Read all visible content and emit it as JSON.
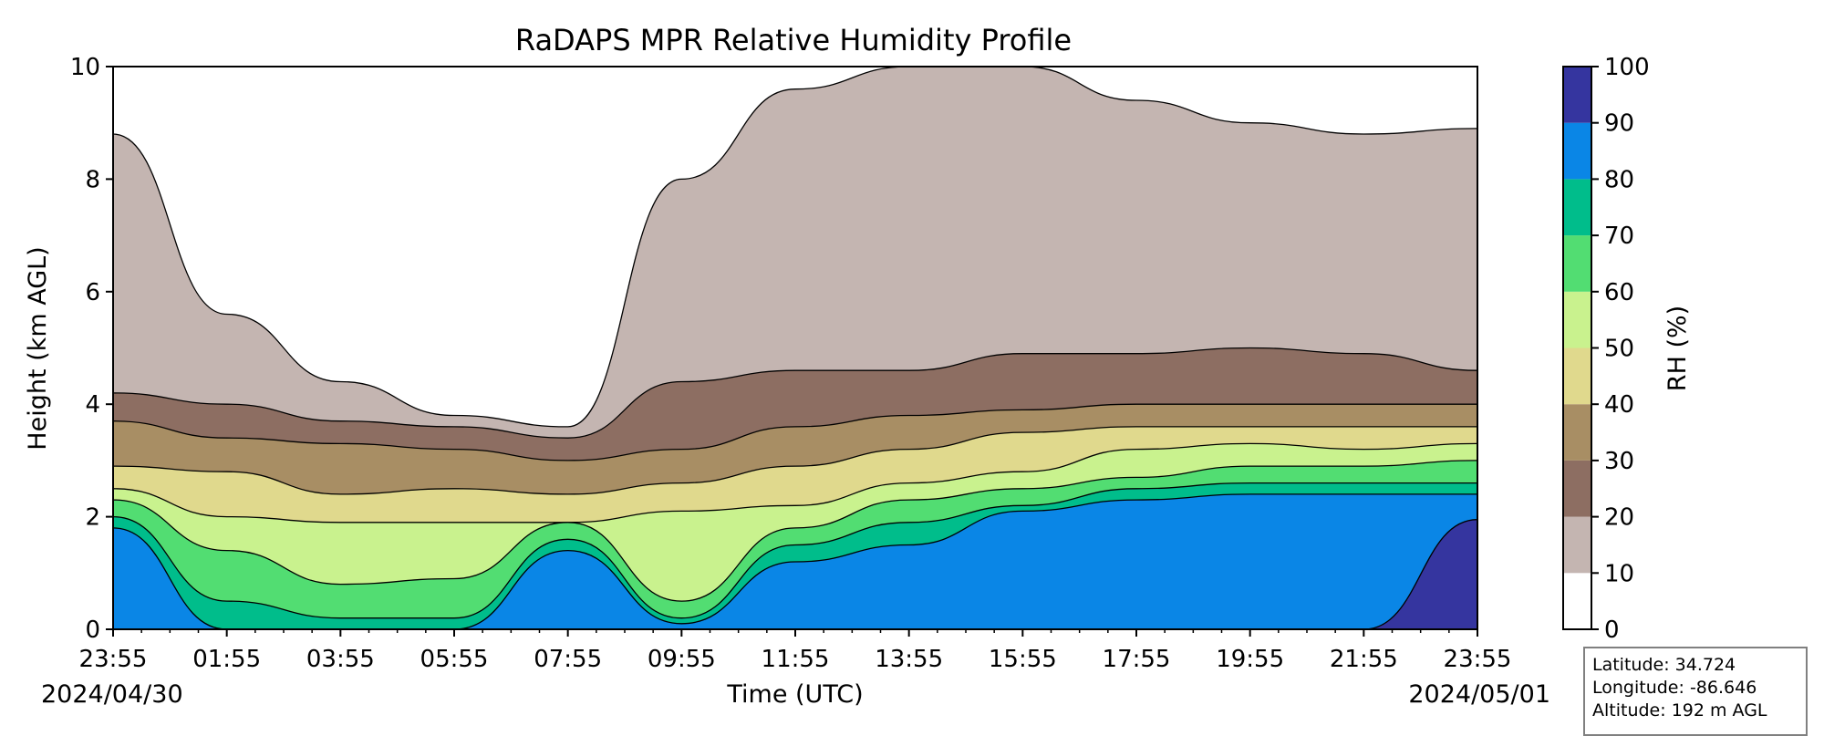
{
  "chart_data": {
    "type": "filled-contour",
    "title": "RaDAPS MPR Relative Humidity Profile",
    "xlabel": "Time (UTC)",
    "ylabel": "Height (km AGL)",
    "colorbar_label": "RH (%)",
    "x_tick_labels": [
      "23:55",
      "01:55",
      "03:55",
      "05:55",
      "07:55",
      "09:55",
      "11:55",
      "13:55",
      "15:55",
      "17:55",
      "19:55",
      "21:55",
      "23:55"
    ],
    "start_date": "2024/04/30",
    "end_date": "2024/05/01",
    "ylim": [
      0,
      10
    ],
    "y_ticks": [
      0,
      2,
      4,
      6,
      8,
      10
    ],
    "levels": [
      0,
      10,
      20,
      30,
      40,
      50,
      60,
      70,
      80,
      90,
      100
    ],
    "level_colors": [
      "#ffffff",
      "#c4b5b1",
      "#8d6e62",
      "#a88e64",
      "#e0d98d",
      "#c9f28e",
      "#52dd72",
      "#00bd8b",
      "#0a86e6",
      "#35359f"
    ],
    "profile_times": [
      "23:55",
      "01:55",
      "03:55",
      "05:55",
      "07:55",
      "09:55",
      "11:55",
      "13:55",
      "15:55",
      "17:55",
      "19:55",
      "21:55",
      "23:55"
    ],
    "series": [
      {
        "name": "10%",
        "values": [
          8.8,
          5.6,
          4.4,
          3.8,
          3.6,
          8.0,
          9.6,
          10,
          10,
          9.4,
          9.0,
          8.8,
          8.9
        ]
      },
      {
        "name": "20%",
        "values": [
          4.2,
          4.0,
          3.7,
          3.6,
          3.4,
          4.4,
          4.6,
          4.6,
          4.9,
          4.9,
          5.0,
          4.9,
          4.6
        ]
      },
      {
        "name": "30%",
        "values": [
          3.7,
          3.4,
          3.3,
          3.2,
          3.0,
          3.2,
          3.6,
          3.8,
          3.9,
          4.0,
          4.0,
          4.0,
          4.0
        ]
      },
      {
        "name": "40%",
        "values": [
          2.9,
          2.8,
          2.4,
          2.5,
          2.4,
          2.6,
          2.9,
          3.2,
          3.5,
          3.6,
          3.6,
          3.6,
          3.6
        ]
      },
      {
        "name": "50%",
        "values": [
          2.5,
          2.0,
          1.9,
          1.9,
          1.9,
          2.1,
          2.2,
          2.6,
          2.8,
          3.2,
          3.3,
          3.2,
          3.3
        ]
      },
      {
        "name": "60%",
        "values": [
          2.3,
          1.4,
          0.8,
          0.9,
          1.9,
          0.5,
          1.8,
          2.3,
          2.5,
          2.7,
          2.9,
          2.9,
          3.0
        ]
      },
      {
        "name": "70%",
        "values": [
          2.0,
          0.5,
          0.2,
          0.2,
          1.6,
          0.2,
          1.5,
          1.9,
          2.2,
          2.5,
          2.6,
          2.6,
          2.6
        ]
      },
      {
        "name": "80%",
        "values": [
          1.8,
          0.0,
          0.0,
          0.0,
          1.4,
          0.1,
          1.2,
          1.5,
          2.1,
          2.3,
          2.4,
          2.4,
          2.4
        ]
      },
      {
        "name": "90%",
        "values": [
          0.0,
          0.0,
          0.0,
          0.0,
          0.0,
          0.0,
          0.0,
          0.0,
          0.0,
          0.0,
          0.0,
          0.0,
          1.95
        ]
      }
    ]
  },
  "station": {
    "latitude": "Latitude: 34.724",
    "longitude": "Longitude: -86.646",
    "altitude": "Altitude: 192 m AGL"
  }
}
